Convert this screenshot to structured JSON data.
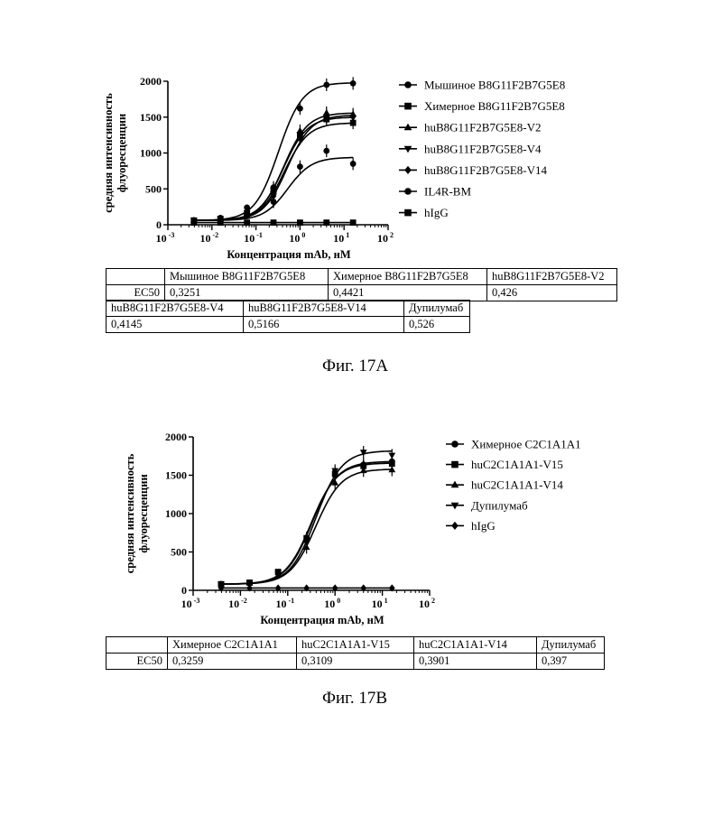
{
  "chart_data": [
    {
      "type": "line",
      "xlabel": "Концентрация mAb, нМ",
      "ylabel": "средняя интенсивность флуоресценции",
      "ylabel_lines": [
        "средняя интенсивность",
        "флуоресценции"
      ],
      "xscale": "log",
      "xlim": [
        0.001,
        100
      ],
      "x_ticks": [
        "10 -3",
        "10 -2",
        "10 -1",
        "10 0",
        "10 1",
        "10 2"
      ],
      "ylim": [
        0,
        2000
      ],
      "y_ticks": [
        "0",
        "500",
        "1000",
        "1500",
        "2000"
      ],
      "legend_position": "right",
      "x": [
        0.0039,
        0.0156,
        0.0625,
        0.25,
        1,
        4,
        16
      ],
      "series": [
        {
          "name": "Мышиное B8G11F2B7G5E8",
          "marker": "circle",
          "ec50": 0.3251,
          "bottom": 60,
          "top": 1980,
          "values": [
            60,
            95,
            240,
            520,
            1620,
            1950,
            1970
          ]
        },
        {
          "name": "Химерное B8G11F2B7G5E8",
          "marker": "square",
          "ec50": 0.4421,
          "bottom": 60,
          "top": 1420,
          "values": [
            60,
            80,
            150,
            460,
            1250,
            1470,
            1420
          ]
        },
        {
          "name": "huB8G11F2B7G5E8-V2",
          "marker": "triangle-up",
          "ec50": 0.426,
          "bottom": 60,
          "top": 1560,
          "values": [
            60,
            85,
            170,
            490,
            1310,
            1560,
            1540
          ]
        },
        {
          "name": "huB8G11F2B7G5E8-V4",
          "marker": "triangle-down",
          "ec50": 0.4145,
          "bottom": 60,
          "top": 1500,
          "values": [
            60,
            85,
            170,
            480,
            1260,
            1500,
            1490
          ]
        },
        {
          "name": "huB8G11F2B7G5E8-V14",
          "marker": "diamond",
          "ec50": 0.5166,
          "bottom": 60,
          "top": 1530,
          "values": [
            60,
            80,
            150,
            400,
            1200,
            1520,
            1510
          ]
        },
        {
          "name": "IL4R-BM",
          "marker": "circle",
          "ec50": 0.526,
          "bottom": 60,
          "top": 940,
          "values": [
            60,
            75,
            130,
            320,
            810,
            1030,
            850
          ]
        },
        {
          "name": "hIgG",
          "marker": "square",
          "flat": true,
          "values": [
            30,
            30,
            30,
            30,
            30,
            30,
            30
          ]
        }
      ]
    },
    {
      "type": "line",
      "xlabel": "Концентрация mAb, нМ",
      "ylabel": "средняя интенсивность флуоресценции",
      "ylabel_lines": [
        "средняя интенсивность",
        "флуоресценции"
      ],
      "xscale": "log",
      "xlim": [
        0.001,
        100
      ],
      "x_ticks": [
        "10 -3",
        "10 -2",
        "10 -1",
        "10 0",
        "10 1",
        "10 2"
      ],
      "ylim": [
        0,
        2000
      ],
      "y_ticks": [
        "0",
        "500",
        "1000",
        "1500",
        "2000"
      ],
      "legend_position": "right",
      "x": [
        0.0039,
        0.0156,
        0.0625,
        0.25,
        1,
        4,
        16
      ],
      "series": [
        {
          "name": "Химерное C2C1A1A1",
          "marker": "circle",
          "ec50": 0.3259,
          "bottom": 80,
          "top": 1680,
          "values": [
            80,
            100,
            230,
            650,
            1500,
            1640,
            1680
          ]
        },
        {
          "name": "huC2C1A1A1-V15",
          "marker": "square",
          "ec50": 0.3109,
          "bottom": 80,
          "top": 1660,
          "values": [
            80,
            100,
            240,
            680,
            1520,
            1620,
            1650
          ]
        },
        {
          "name": "huC2C1A1A1-V14",
          "marker": "triangle-up",
          "ec50": 0.3901,
          "bottom": 80,
          "top": 1580,
          "values": [
            80,
            95,
            200,
            560,
            1400,
            1560,
            1570
          ]
        },
        {
          "name": "Дупилумаб",
          "marker": "triangle-down",
          "ec50": 0.397,
          "bottom": 80,
          "top": 1820,
          "values": [
            80,
            100,
            230,
            620,
            1560,
            1800,
            1760
          ]
        },
        {
          "name": "hIgG",
          "marker": "diamond",
          "flat": true,
          "values": [
            30,
            30,
            30,
            30,
            30,
            30,
            30
          ]
        }
      ]
    }
  ],
  "tables": {
    "fig_a": {
      "row1": {
        "c0": "",
        "c1": "Мышиное B8G11F2B7G5E8",
        "c2": "Химерное B8G11F2B7G5E8",
        "c3": "huB8G11F2B7G5E8-V2"
      },
      "row2": {
        "c0": "EC50",
        "c1": "0,3251",
        "c2": "0,4421",
        "c3": "0,426"
      },
      "row3": {
        "c1": "huB8G11F2B7G5E8-V4",
        "c2": "huB8G11F2B7G5E8-V14",
        "c3": "Дупилумаб"
      },
      "row4": {
        "c1": "0,4145",
        "c2": "0,5166",
        "c3": "0,526"
      }
    },
    "fig_b": {
      "row1": {
        "c0": "",
        "c1": "Химерное C2C1A1A1",
        "c2": "huC2C1A1A1-V15",
        "c3": "huC2C1A1A1-V14",
        "c4": "Дупилумаб"
      },
      "row2": {
        "c0": "EC50",
        "c1": "0,3259",
        "c2": "0,3109",
        "c3": "0,3901",
        "c4": "0,397"
      }
    }
  },
  "captions": {
    "fig_a": "Фиг. 17A",
    "fig_b": "Фиг. 17B"
  }
}
